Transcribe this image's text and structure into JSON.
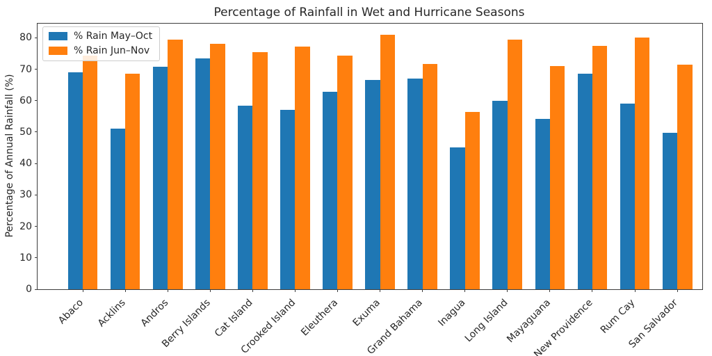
{
  "chart_data": {
    "type": "bar",
    "title": "Percentage of Rainfall in Wet and Hurricane Seasons",
    "xlabel": "",
    "ylabel": "Percentage of Annual Rainfall (%)",
    "categories": [
      "Abaco",
      "Acklins",
      "Andros",
      "Berry Islands",
      "Cat Island",
      "Crooked Island",
      "Eleuthera",
      "Exuma",
      "Grand Bahama",
      "Inagua",
      "Long Island",
      "Mayaguana",
      "New Providence",
      "Rum Cay",
      "San Salvador"
    ],
    "series": [
      {
        "name": "% Rain May–Oct",
        "color": "#1f77b4",
        "values": [
          69.1,
          51.0,
          70.8,
          73.4,
          58.4,
          57.1,
          62.9,
          66.5,
          67.1,
          45.2,
          59.9,
          54.2,
          68.6,
          59.1,
          49.7
        ]
      },
      {
        "name": "% Rain Jun–Nov",
        "color": "#ff7f0e",
        "values": [
          74.3,
          68.5,
          79.5,
          78.1,
          75.4,
          77.1,
          74.4,
          81.0,
          71.6,
          56.4,
          79.4,
          70.9,
          77.4,
          80.1,
          71.4
        ]
      }
    ],
    "yticks": [
      0,
      10,
      20,
      30,
      40,
      50,
      60,
      70,
      80
    ],
    "ylim": [
      0,
      84.5
    ],
    "grid": false,
    "legend_position": "upper left"
  }
}
